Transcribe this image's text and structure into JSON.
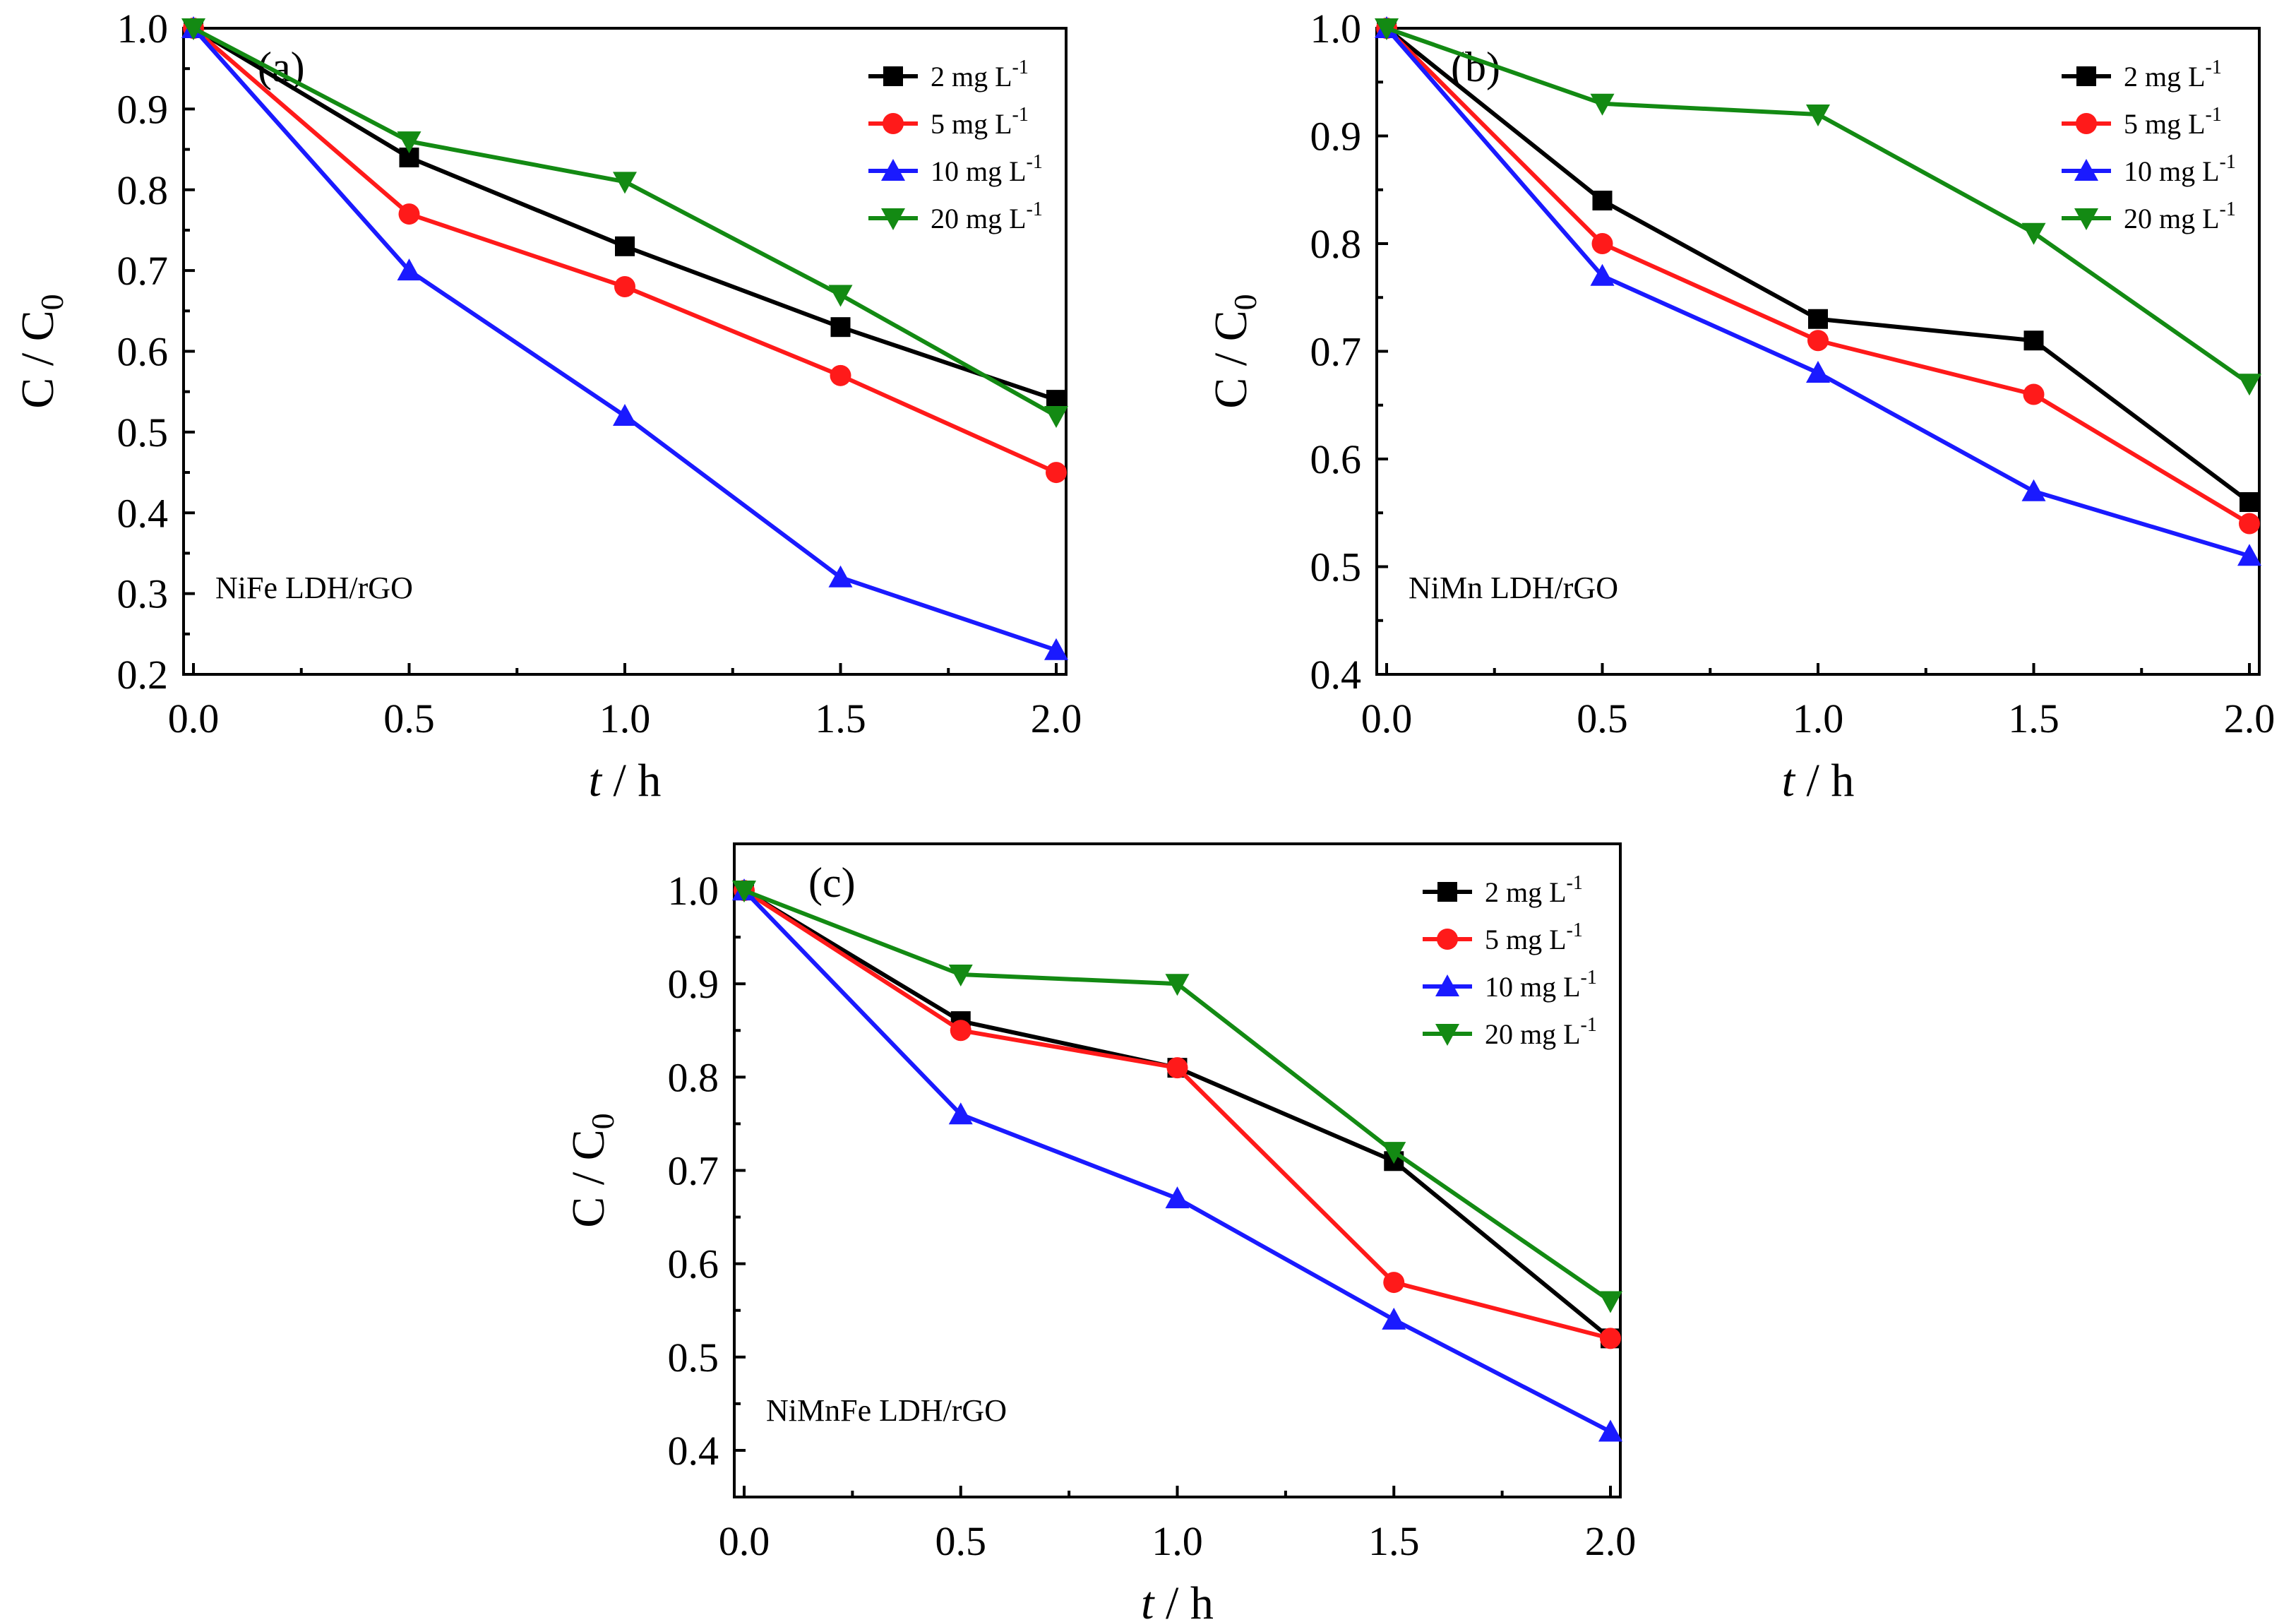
{
  "figure": {
    "x_axis_title": "t / h",
    "x_axis_title_italic_part": "t",
    "x_axis_title_rest": " / h",
    "y_axis_title_main": "C / C",
    "y_axis_title_sub": "0"
  },
  "legend_unit_suffix": "-1",
  "colors": {
    "2": "#000000",
    "5": "#ff1a1a",
    "10": "#1a1aff",
    "20": "#138a13"
  },
  "chart_data": [
    {
      "type": "line",
      "panel": "(a)",
      "sample": "NiFe LDH/rGO",
      "xlabel": "t / h",
      "ylabel": "C / C0",
      "x": [
        0.0,
        0.5,
        1.0,
        1.5,
        2.0
      ],
      "xlim": [
        0.0,
        2.0
      ],
      "ylim": [
        0.2,
        1.0
      ],
      "x_ticks": [
        0.0,
        0.5,
        1.0,
        1.5,
        2.0
      ],
      "y_ticks": [
        0.2,
        0.3,
        0.4,
        0.5,
        0.6,
        0.7,
        0.8,
        0.9,
        1.0
      ],
      "legend_position": "top-right",
      "series": [
        {
          "name": "2 mg L-1",
          "label_main": "2 mg L",
          "marker": "square",
          "color": "#000000",
          "values": [
            1.0,
            0.84,
            0.73,
            0.63,
            0.54
          ]
        },
        {
          "name": "5 mg L-1",
          "label_main": "5 mg L",
          "marker": "circle",
          "color": "#ff1a1a",
          "values": [
            1.0,
            0.77,
            0.68,
            0.57,
            0.45
          ]
        },
        {
          "name": "10 mg L-1",
          "label_main": "10 mg L",
          "marker": "triangle-up",
          "color": "#1a1aff",
          "values": [
            1.0,
            0.7,
            0.52,
            0.32,
            0.23
          ]
        },
        {
          "name": "20 mg L-1",
          "label_main": "20 mg L",
          "marker": "triangle-down",
          "color": "#138a13",
          "values": [
            1.0,
            0.86,
            0.81,
            0.67,
            0.52
          ]
        }
      ]
    },
    {
      "type": "line",
      "panel": "(b)",
      "sample": "NiMn LDH/rGO",
      "xlabel": "t / h",
      "ylabel": "C / C0",
      "x": [
        0.0,
        0.5,
        1.0,
        1.5,
        2.0
      ],
      "xlim": [
        0.0,
        2.0
      ],
      "ylim": [
        0.4,
        1.0
      ],
      "x_ticks": [
        0.0,
        0.5,
        1.0,
        1.5,
        2.0
      ],
      "y_ticks": [
        0.4,
        0.5,
        0.6,
        0.7,
        0.8,
        0.9,
        1.0
      ],
      "legend_position": "top-right",
      "series": [
        {
          "name": "2 mg L-1",
          "label_main": "2 mg L",
          "marker": "square",
          "color": "#000000",
          "values": [
            1.0,
            0.84,
            0.73,
            0.71,
            0.56
          ]
        },
        {
          "name": "5 mg L-1",
          "label_main": "5 mg L",
          "marker": "circle",
          "color": "#ff1a1a",
          "values": [
            1.0,
            0.8,
            0.71,
            0.66,
            0.54
          ]
        },
        {
          "name": "10 mg L-1",
          "label_main": "10 mg L",
          "marker": "triangle-up",
          "color": "#1a1aff",
          "values": [
            1.0,
            0.77,
            0.68,
            0.57,
            0.51
          ]
        },
        {
          "name": "20 mg L-1",
          "label_main": "20 mg L",
          "marker": "triangle-down",
          "color": "#138a13",
          "values": [
            1.0,
            0.93,
            0.92,
            0.81,
            0.67
          ]
        }
      ]
    },
    {
      "type": "line",
      "panel": "(c)",
      "sample": "NiMnFe LDH/rGO",
      "xlabel": "t / h",
      "ylabel": "C / C0",
      "x": [
        0.0,
        0.5,
        1.0,
        1.5,
        2.0
      ],
      "xlim": [
        0.0,
        2.0
      ],
      "ylim": [
        0.35,
        1.05
      ],
      "x_ticks": [
        0.0,
        0.5,
        1.0,
        1.5,
        2.0
      ],
      "y_ticks": [
        0.4,
        0.5,
        0.6,
        0.7,
        0.8,
        0.9,
        1.0
      ],
      "legend_position": "top-right",
      "series": [
        {
          "name": "2 mg L-1",
          "label_main": "2 mg L",
          "marker": "square",
          "color": "#000000",
          "values": [
            1.0,
            0.86,
            0.81,
            0.71,
            0.52
          ]
        },
        {
          "name": "5 mg L-1",
          "label_main": "5 mg L",
          "marker": "circle",
          "color": "#ff1a1a",
          "values": [
            1.0,
            0.85,
            0.81,
            0.58,
            0.52
          ]
        },
        {
          "name": "10 mg L-1",
          "label_main": "10 mg L",
          "marker": "triangle-up",
          "color": "#1a1aff",
          "values": [
            1.0,
            0.76,
            0.67,
            0.54,
            0.42
          ]
        },
        {
          "name": "20 mg L-1",
          "label_main": "20 mg L",
          "marker": "triangle-down",
          "color": "#138a13",
          "values": [
            1.0,
            0.91,
            0.9,
            0.72,
            0.56
          ]
        }
      ]
    }
  ]
}
